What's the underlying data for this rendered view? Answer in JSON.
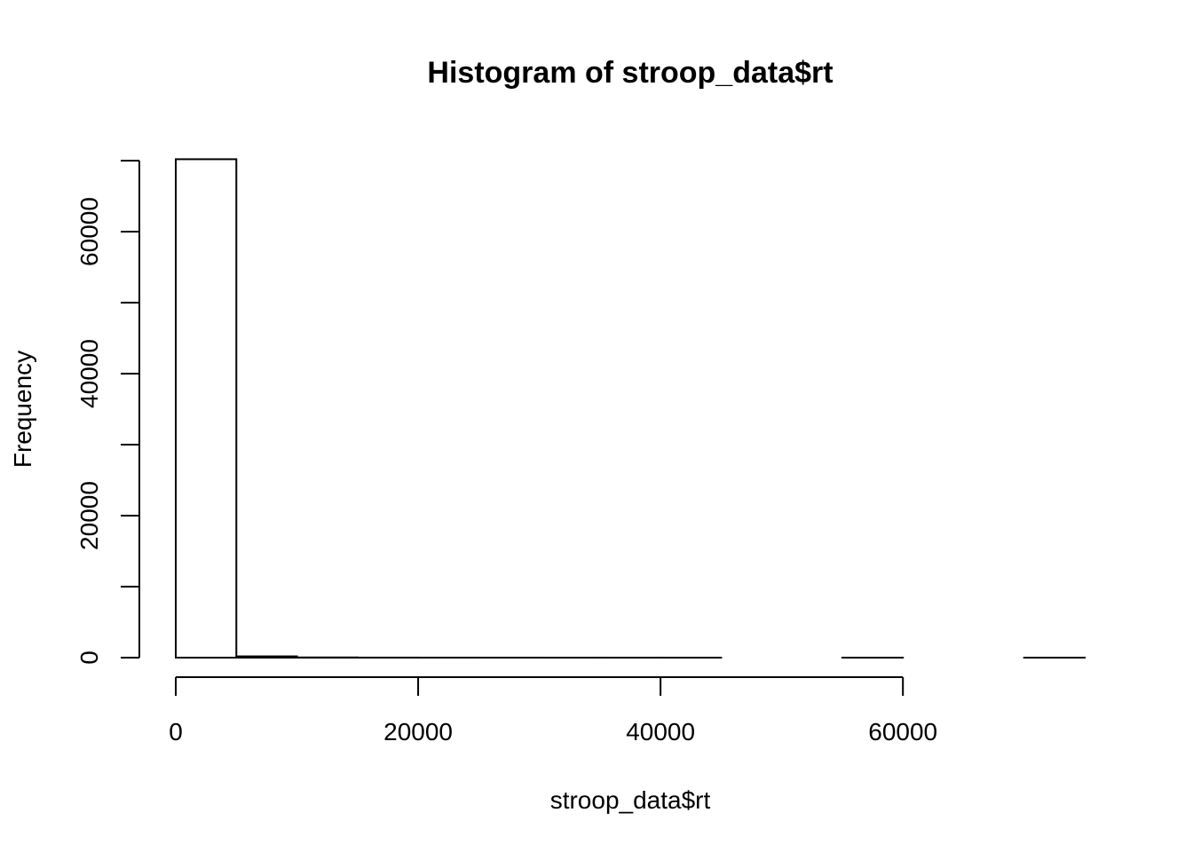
{
  "chart_data": {
    "type": "bar",
    "title": "Histogram of stroop_data$rt",
    "xlabel": "stroop_data$rt",
    "ylabel": "Frequency",
    "bins": [
      {
        "x0": 0,
        "x1": 5000,
        "count": 70200
      },
      {
        "x0": 5000,
        "x1": 10000,
        "count": 180
      },
      {
        "x0": 10000,
        "x1": 15000,
        "count": 30
      },
      {
        "x0": 15000,
        "x1": 20000,
        "count": 8
      },
      {
        "x0": 20000,
        "x1": 25000,
        "count": 4
      },
      {
        "x0": 25000,
        "x1": 30000,
        "count": 2
      },
      {
        "x0": 30000,
        "x1": 35000,
        "count": 1
      },
      {
        "x0": 35000,
        "x1": 40000,
        "count": 1
      },
      {
        "x0": 40000,
        "x1": 45000,
        "count": 1
      },
      {
        "x0": 45000,
        "x1": 50000,
        "count": 0
      },
      {
        "x0": 50000,
        "x1": 55000,
        "count": 0
      },
      {
        "x0": 55000,
        "x1": 60000,
        "count": 1
      },
      {
        "x0": 60000,
        "x1": 65000,
        "count": 0
      },
      {
        "x0": 65000,
        "x1": 70000,
        "count": 0
      },
      {
        "x0": 70000,
        "x1": 75000,
        "count": 1
      }
    ],
    "xlim": [
      0,
      75000
    ],
    "ylim": [
      0,
      70000
    ],
    "x_ticks": [
      0,
      20000,
      40000,
      60000
    ],
    "x_tick_labels": [
      "0",
      "20000",
      "40000",
      "60000"
    ],
    "y_ticks": [
      0,
      10000,
      20000,
      30000,
      40000,
      50000,
      60000,
      70000
    ],
    "y_tick_labels": [
      "0",
      "",
      "20000",
      "",
      "40000",
      "",
      "60000",
      ""
    ],
    "grid": false,
    "bar_fill": "#ffffff",
    "stroke_color": "#000000"
  }
}
